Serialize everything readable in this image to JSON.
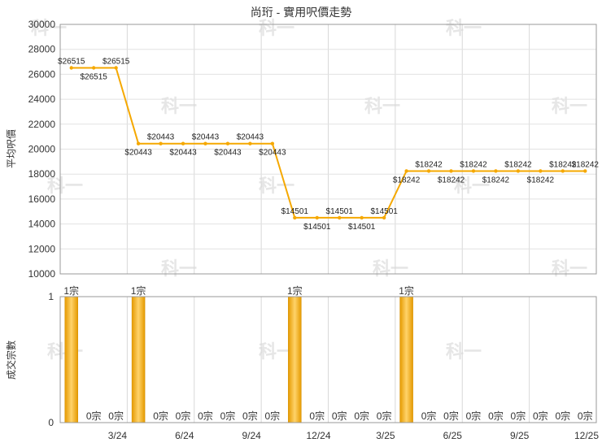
{
  "watermark": "科一",
  "chart_data": [
    {
      "type": "line",
      "title": "尚珩 - 實用呎價走勢",
      "ylabel": "平均呎價",
      "ylim": [
        10000,
        30000
      ],
      "yticks": [
        10000,
        12000,
        14000,
        16000,
        18000,
        20000,
        22000,
        24000,
        26000,
        28000,
        30000
      ],
      "color": "#f5a800",
      "series": [
        {
          "values": [
            26515,
            26515,
            26515,
            20443,
            20443,
            20443,
            20443,
            20443,
            20443,
            20443,
            14501,
            14501,
            14501,
            14501,
            14501,
            18242,
            18242,
            18242,
            18242,
            18242,
            18242,
            18242,
            18242,
            18242
          ],
          "labels": [
            "$26515",
            "$26515",
            "$26515",
            "$20443",
            "$20443",
            "$20443",
            "$20443",
            "$20443",
            "$20443",
            "$20443",
            "$14501",
            "$14501",
            "$14501",
            "$14501",
            "$14501",
            "$18242",
            "$18242",
            "$18242",
            "$18242",
            "$18242",
            "$18242",
            "$18242",
            "$18242",
            "$18242"
          ]
        }
      ]
    },
    {
      "type": "bar",
      "ylabel": "成交宗數",
      "ylim": [
        0,
        1
      ],
      "yticks": [
        0,
        1
      ],
      "color": "#f5a800",
      "x_tick_labels": [
        "3/24",
        "6/24",
        "9/24",
        "12/24",
        "3/25",
        "6/25",
        "9/25",
        "12/25"
      ],
      "series": [
        {
          "values": [
            1,
            0,
            0,
            1,
            0,
            0,
            0,
            0,
            0,
            0,
            1,
            0,
            0,
            0,
            0,
            1,
            0,
            0,
            0,
            0,
            0,
            0,
            0,
            0
          ],
          "labels": [
            "1宗",
            "0宗",
            "0宗",
            "1宗",
            "0宗",
            "0宗",
            "0宗",
            "0宗",
            "0宗",
            "0宗",
            "1宗",
            "0宗",
            "0宗",
            "0宗",
            "0宗",
            "1宗",
            "0宗",
            "0宗",
            "0宗",
            "0宗",
            "0宗",
            "0宗",
            "0宗",
            "0宗"
          ]
        }
      ]
    }
  ]
}
